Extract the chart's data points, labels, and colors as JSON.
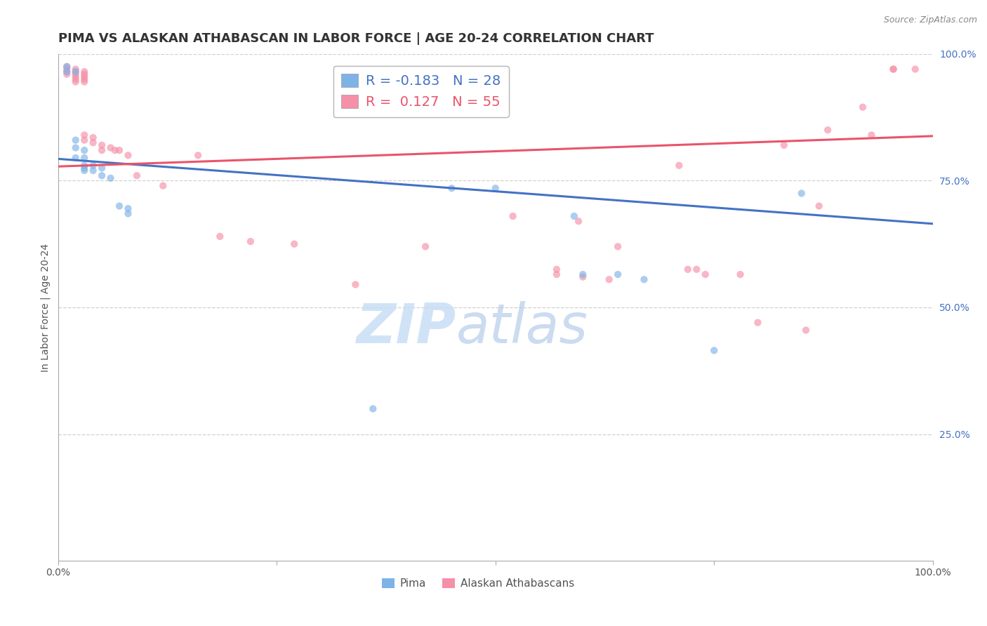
{
  "title": "PIMA VS ALASKAN ATHABASCAN IN LABOR FORCE | AGE 20-24 CORRELATION CHART",
  "source_text": "Source: ZipAtlas.com",
  "ylabel": "In Labor Force | Age 20-24",
  "xlim": [
    0,
    1
  ],
  "ylim": [
    0,
    1
  ],
  "yticks_right": [
    0.25,
    0.5,
    0.75,
    1.0
  ],
  "ytick_labels_right": [
    "25.0%",
    "50.0%",
    "75.0%",
    "100.0%"
  ],
  "background_color": "#ffffff",
  "grid_color": "#d0d0d0",
  "pima_color": "#7eb3e8",
  "alaskan_color": "#f590a8",
  "pima_r": -0.183,
  "pima_n": 28,
  "alaskan_r": 0.127,
  "alaskan_n": 55,
  "legend_pima_label": "Pima",
  "legend_alaskan_label": "Alaskan Athabascans",
  "watermark_zip": "ZIP",
  "watermark_atlas": "atlas",
  "pima_line_color": "#4472c4",
  "alaskan_line_color": "#e9546b",
  "pima_line_y0": 0.793,
  "pima_line_y1": 0.665,
  "alaskan_line_y0": 0.778,
  "alaskan_line_y1": 0.838,
  "title_fontsize": 13,
  "axis_label_fontsize": 10,
  "tick_fontsize": 10,
  "legend_fontsize": 14,
  "scatter_size": 55,
  "scatter_alpha": 0.65,
  "line_width": 2.2,
  "pima_x": [
    0.01,
    0.01,
    0.02,
    0.02,
    0.02,
    0.02,
    0.03,
    0.03,
    0.03,
    0.03,
    0.03,
    0.04,
    0.04,
    0.05,
    0.05,
    0.06,
    0.07,
    0.08,
    0.08,
    0.36,
    0.45,
    0.5,
    0.59,
    0.6,
    0.64,
    0.67,
    0.75,
    0.85
  ],
  "pima_y": [
    0.975,
    0.965,
    0.965,
    0.83,
    0.815,
    0.795,
    0.81,
    0.795,
    0.78,
    0.775,
    0.77,
    0.78,
    0.77,
    0.775,
    0.76,
    0.755,
    0.7,
    0.695,
    0.685,
    0.3,
    0.735,
    0.735,
    0.68,
    0.565,
    0.565,
    0.555,
    0.415,
    0.725
  ],
  "alaskan_x": [
    0.01,
    0.01,
    0.01,
    0.01,
    0.02,
    0.02,
    0.02,
    0.02,
    0.02,
    0.02,
    0.03,
    0.03,
    0.03,
    0.03,
    0.03,
    0.03,
    0.03,
    0.04,
    0.04,
    0.05,
    0.05,
    0.06,
    0.065,
    0.07,
    0.08,
    0.09,
    0.12,
    0.16,
    0.185,
    0.22,
    0.27,
    0.34,
    0.42,
    0.52,
    0.57,
    0.57,
    0.595,
    0.6,
    0.63,
    0.64,
    0.71,
    0.72,
    0.73,
    0.74,
    0.78,
    0.8,
    0.83,
    0.855,
    0.87,
    0.88,
    0.92,
    0.93,
    0.955,
    0.955,
    0.98
  ],
  "alaskan_y": [
    0.975,
    0.97,
    0.965,
    0.96,
    0.97,
    0.965,
    0.96,
    0.955,
    0.95,
    0.945,
    0.965,
    0.96,
    0.955,
    0.95,
    0.945,
    0.84,
    0.83,
    0.835,
    0.825,
    0.82,
    0.81,
    0.815,
    0.81,
    0.81,
    0.8,
    0.76,
    0.74,
    0.8,
    0.64,
    0.63,
    0.625,
    0.545,
    0.62,
    0.68,
    0.575,
    0.565,
    0.67,
    0.56,
    0.555,
    0.62,
    0.78,
    0.575,
    0.575,
    0.565,
    0.565,
    0.47,
    0.82,
    0.455,
    0.7,
    0.85,
    0.895,
    0.84,
    0.97,
    0.97,
    0.97
  ]
}
